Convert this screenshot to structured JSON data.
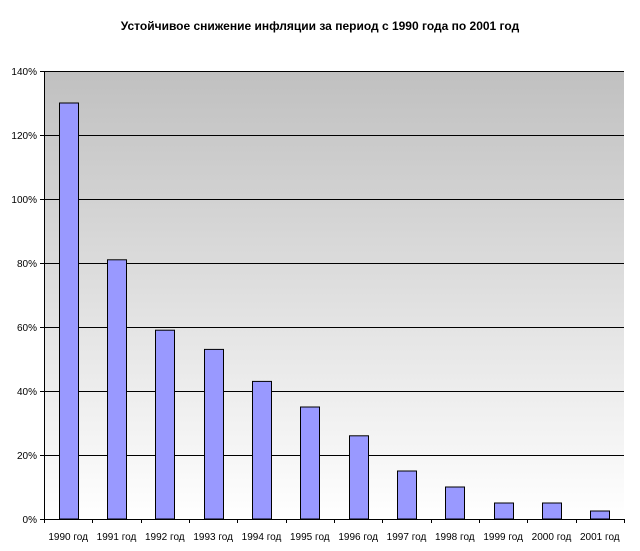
{
  "chart_data": {
    "type": "bar",
    "title": "Устойчивое снижение инфляции за период с 1990 года по 2001 год",
    "categories": [
      "1990 год",
      "1991 год",
      "1992 год",
      "1993 год",
      "1994 год",
      "1995 год",
      "1996 год",
      "1997 год",
      "1998 год",
      "1999 год",
      "2000 год",
      "2001 год"
    ],
    "values": [
      130,
      81,
      59,
      53,
      43,
      35,
      26,
      15,
      10,
      5,
      5,
      2.5
    ],
    "value_unit": "%",
    "ylim": [
      0,
      140
    ],
    "yticks": [
      "0%",
      "20%",
      "40%",
      "60%",
      "80%",
      "100%",
      "120%",
      "140%"
    ],
    "grid": true,
    "legend": "none",
    "colors": {
      "bar_fill": "#9999ff",
      "bar_stroke": "#000000",
      "plot_top": "#c0c0c0",
      "plot_bottom": "#ffffff",
      "grid": "#000000"
    }
  }
}
